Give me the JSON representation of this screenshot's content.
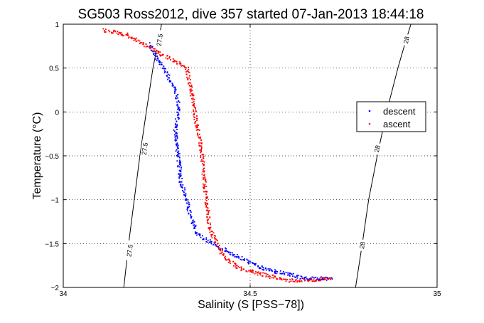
{
  "chart_data": {
    "type": "scatter",
    "title": "SG503 Ross2012, dive 357 started 07-Jan-2013 18:44:18",
    "xlabel": "Salinity (S [PSS−78])",
    "ylabel": "Temperature (°C)",
    "xlim": [
      34,
      35
    ],
    "ylim": [
      -2,
      1
    ],
    "xticks": [
      34,
      34.5,
      35
    ],
    "xtick_labels": [
      "34",
      "34.5",
      "35"
    ],
    "yticks": [
      -2,
      -1.5,
      -1,
      -0.5,
      0,
      0.5,
      1
    ],
    "ytick_labels": [
      "−2",
      "−1.5",
      "−1",
      "−0.5",
      "0",
      "0.5",
      "1"
    ],
    "grid": true,
    "legend_position": "right",
    "density_contours": [
      {
        "label": "27.5",
        "points": [
          [
            34.162,
            -2
          ],
          [
            34.175,
            -1.5
          ],
          [
            34.19,
            -1.0
          ],
          [
            34.205,
            -0.5
          ],
          [
            34.222,
            0
          ],
          [
            34.24,
            0.5
          ],
          [
            34.255,
            0.82
          ],
          [
            34.263,
            1.0
          ]
        ],
        "label_positions": [
          [
            34.178,
            -1.58
          ],
          [
            34.218,
            -0.42
          ],
          [
            34.258,
            0.82
          ]
        ]
      },
      {
        "label": "28",
        "points": [
          [
            34.782,
            -2
          ],
          [
            34.8,
            -1.5
          ],
          [
            34.817,
            -1.0
          ],
          [
            34.84,
            -0.5
          ],
          [
            34.865,
            0
          ],
          [
            34.895,
            0.5
          ],
          [
            34.917,
            0.82
          ],
          [
            34.93,
            1.0
          ]
        ],
        "label_positions": [
          [
            34.8,
            -1.52
          ],
          [
            34.84,
            -0.42
          ],
          [
            34.918,
            0.82
          ]
        ]
      }
    ],
    "series": [
      {
        "name": "descent",
        "color": "#0000ff",
        "trajectory": [
          [
            34.23,
            0.78
          ],
          [
            34.24,
            0.7
          ],
          [
            34.25,
            0.6
          ],
          [
            34.27,
            0.5
          ],
          [
            34.3,
            0.25
          ],
          [
            34.31,
            0.05
          ],
          [
            34.3,
            -0.2
          ],
          [
            34.305,
            -0.4
          ],
          [
            34.31,
            -0.6
          ],
          [
            34.315,
            -0.8
          ],
          [
            34.33,
            -1.0
          ],
          [
            34.34,
            -1.2
          ],
          [
            34.36,
            -1.4
          ],
          [
            34.42,
            -1.55
          ],
          [
            34.48,
            -1.68
          ],
          [
            34.53,
            -1.78
          ],
          [
            34.6,
            -1.85
          ],
          [
            34.65,
            -1.9
          ],
          [
            34.72,
            -1.9
          ]
        ]
      },
      {
        "name": "ascent",
        "color": "#ff0000",
        "trajectory": [
          [
            34.11,
            0.93
          ],
          [
            34.17,
            0.88
          ],
          [
            34.33,
            0.5
          ],
          [
            34.34,
            0.3
          ],
          [
            34.35,
            0.05
          ],
          [
            34.36,
            -0.2
          ],
          [
            34.37,
            -0.45
          ],
          [
            34.375,
            -0.7
          ],
          [
            34.38,
            -0.9
          ],
          [
            34.385,
            -1.1
          ],
          [
            34.39,
            -1.3
          ],
          [
            34.41,
            -1.5
          ],
          [
            34.43,
            -1.65
          ],
          [
            34.47,
            -1.78
          ],
          [
            34.53,
            -1.85
          ],
          [
            34.6,
            -1.92
          ],
          [
            34.65,
            -1.92
          ],
          [
            34.72,
            -1.9
          ]
        ]
      }
    ]
  }
}
